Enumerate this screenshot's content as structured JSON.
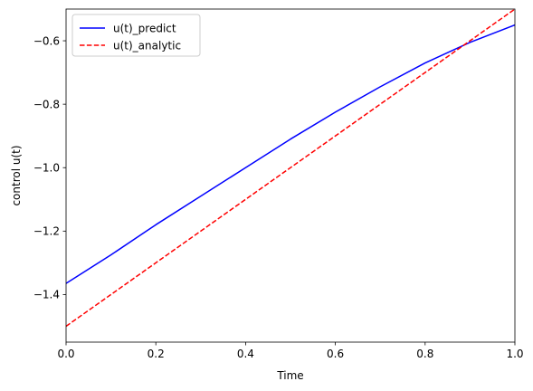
{
  "chart_data": {
    "type": "line",
    "xlabel": "Time",
    "ylabel": "control u(t)",
    "xlim": [
      0,
      1
    ],
    "ylim": [
      -1.55,
      -0.5
    ],
    "xticks": [
      0.0,
      0.2,
      0.4,
      0.6,
      0.8,
      1.0
    ],
    "xtick_labels": [
      "0.0",
      "0.2",
      "0.4",
      "0.6",
      "0.8",
      "1.0"
    ],
    "yticks": [
      -1.4,
      -1.2,
      -1.0,
      -0.8,
      -0.6
    ],
    "ytick_labels": [
      "−1.4",
      "−1.2",
      "−1.0",
      "−0.8",
      "−0.6"
    ],
    "grid": false,
    "legend_position": "top-left",
    "series": [
      {
        "name": "u(t)_predict",
        "color": "#0000ff",
        "style": "solid",
        "x": [
          0.0,
          0.1,
          0.2,
          0.3,
          0.4,
          0.5,
          0.6,
          0.7,
          0.8,
          0.9,
          1.0
        ],
        "y": [
          -1.365,
          -1.275,
          -1.18,
          -1.09,
          -1.0,
          -0.91,
          -0.825,
          -0.745,
          -0.67,
          -0.605,
          -0.55
        ]
      },
      {
        "name": "u(t)_analytic",
        "color": "#ff0000",
        "style": "dashed",
        "x": [
          0.0,
          1.0
        ],
        "y": [
          -1.5,
          -0.5
        ]
      }
    ]
  }
}
